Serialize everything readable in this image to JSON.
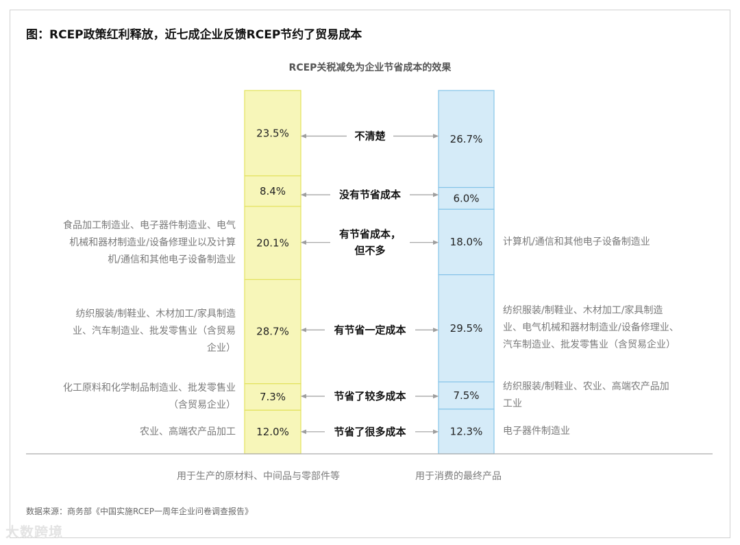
{
  "title": "图：RCEP政策红利释放，近七成企业反馈RCEP节约了贸易成本",
  "subtitle": "RCEP关税减免为企业节省成本的效果",
  "source": "数据来源：商务部《中国实施RCEP一周年企业问卷调查报告》",
  "watermark": "大数跨境",
  "colors": {
    "left_fill": "#f7f6b9",
    "left_stroke": "#e3e25c",
    "right_fill": "#d5ebf8",
    "right_stroke": "#86c4e8",
    "arrow": "#9e9e9e"
  },
  "chart_data": {
    "type": "stacked-bar",
    "series": [
      {
        "name": "用于生产的原材料、中间品与零部件等",
        "values": [
          23.5,
          8.4,
          20.1,
          28.7,
          7.3,
          12.0
        ]
      },
      {
        "name": "用于消费的最终产品",
        "values": [
          26.7,
          6.0,
          18.0,
          29.5,
          7.5,
          12.3
        ]
      }
    ],
    "categories": [
      [
        "不清楚"
      ],
      [
        "没有节省成本"
      ],
      [
        "有节省成本，",
        "但不多"
      ],
      [
        "有节省一定成本"
      ],
      [
        "节省了较多成本"
      ],
      [
        "节省了很多成本"
      ]
    ],
    "value_labels": {
      "left": [
        "23.5%",
        "8.4%",
        "20.1%",
        "28.7%",
        "7.3%",
        "12.0%"
      ],
      "right": [
        "26.7%",
        "6.0%",
        "18.0%",
        "29.5%",
        "7.5%",
        "12.3%"
      ]
    },
    "left_notes": [
      [],
      [],
      [
        "食品加工制造业、电子器件制造业、电气",
        "机械和器材制造业/设备修理业以及计算",
        "机/通信和其他电子设备制造业"
      ],
      [
        "纺织服装/制鞋业、木材加工/家具制造",
        "业、汽车制造业、批发零售业（含贸易",
        "企业）"
      ],
      [
        "化工原料和化学制品制造业、批发零售业",
        "（含贸易企业）"
      ],
      [
        "农业、高端农产品加工"
      ]
    ],
    "right_notes": [
      [],
      [],
      [
        "计算机/通信和其他电子设备制造业"
      ],
      [
        "纺织服装/制鞋业、木材加工/家具制造",
        "业、电气机械和器材制造业/设备修理业、",
        "汽车制造业、批发零售业（含贸易企业）"
      ],
      [
        "纺织服装/制鞋业、农业、高端农产品加",
        "工业"
      ],
      [
        "电子器件制造业"
      ]
    ],
    "xlabels": [
      "用于生产的原材料、中间品与零部件等",
      "用于消费的最终产品"
    ]
  }
}
